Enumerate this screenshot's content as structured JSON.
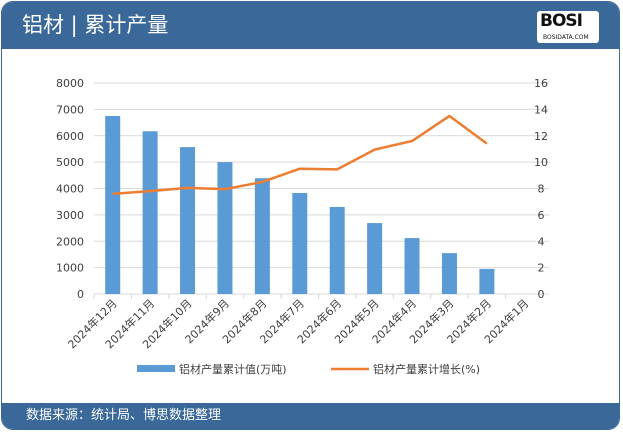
{
  "header": {
    "title": "铝材 | 累计产量",
    "logo_text": "BOSI",
    "logo_sub": "BOSIDATA.COM"
  },
  "footer": {
    "source": "数据来源：统计局、博思数据整理"
  },
  "colors": {
    "header": "#3a6898",
    "bar": "#5b9bd5",
    "line": "#ed7d31"
  },
  "chart_data": {
    "type": "bar+line",
    "categories": [
      "2024年12月",
      "2024年11月",
      "2024年10月",
      "2024年9月",
      "2024年8月",
      "2024年7月",
      "2024年6月",
      "2024年5月",
      "2024年4月",
      "2024年3月",
      "2024年2月",
      "2024年1月"
    ],
    "series": [
      {
        "name": "铝材产量累计值(万吨)",
        "type": "bar",
        "axis": "left",
        "values": [
          6750,
          6170,
          5570,
          5000,
          4390,
          3830,
          3300,
          2690,
          2120,
          1550,
          950,
          null
        ]
      },
      {
        "name": "铝材产量累计增长(%)",
        "type": "line",
        "axis": "right",
        "values": [
          7.6,
          7.8,
          8.05,
          7.95,
          8.5,
          9.5,
          9.45,
          10.95,
          11.6,
          13.5,
          11.4,
          null
        ]
      }
    ],
    "left_axis": {
      "ylim": [
        0,
        8000
      ],
      "ticks": [
        0,
        1000,
        2000,
        3000,
        4000,
        5000,
        6000,
        7000,
        8000
      ]
    },
    "right_axis": {
      "ylim": [
        0,
        16
      ],
      "ticks": [
        0,
        2,
        4,
        6,
        8,
        10,
        12,
        14,
        16
      ]
    },
    "grid": true,
    "legend": "bottom"
  }
}
